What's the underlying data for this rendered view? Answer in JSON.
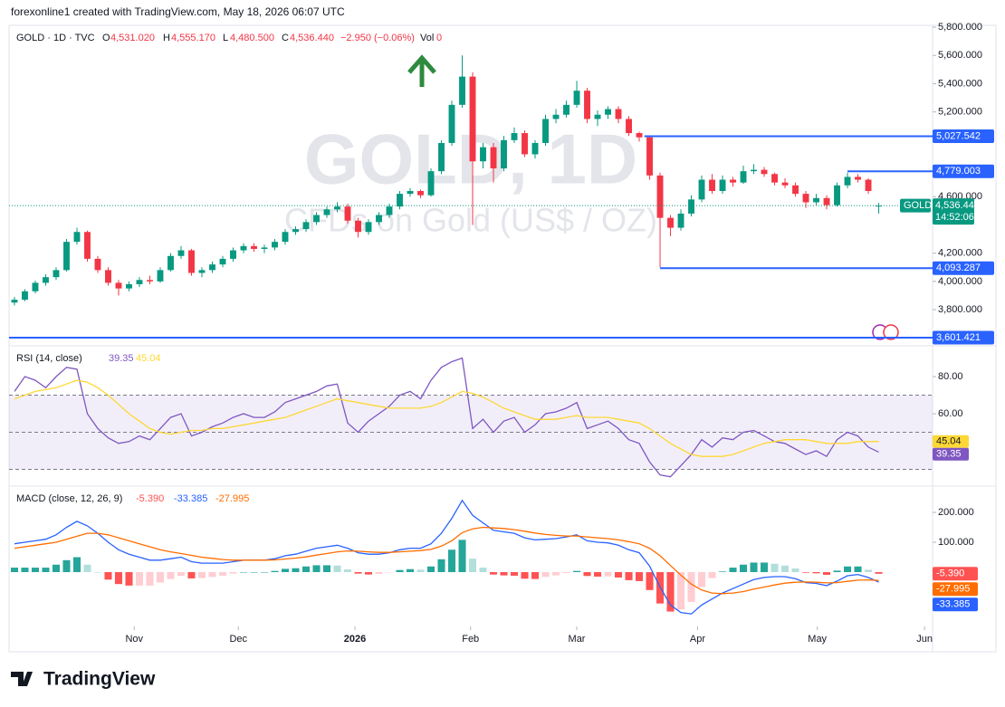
{
  "header": "forexonline1 created with TradingView.com, May 18, 2026 06:07 UTC",
  "legend": {
    "symbol": "GOLD · 1D · TVC",
    "o_label": "O",
    "o": "4,531.020",
    "h_label": "H",
    "h": "4,555.170",
    "l_label": "L",
    "l": "4,480.500",
    "c_label": "C",
    "c": "4,536.440",
    "change": "−2.950 (−0.06%)",
    "vol": "Vol",
    "vol_value": "0"
  },
  "watermark": [
    "GOLD, 1D",
    "CFDs on Gold (US$ / OZ)"
  ],
  "logo": "TradingView",
  "chart_data": [
    {
      "type": "candlestick",
      "up_color": "#089981",
      "down_color": "#f23645",
      "xlim": [
        -0.52,
        88.17
      ],
      "ylim": [
        3544,
        5800
      ],
      "yticks": [
        {
          "value": 5800,
          "label": "5,800.000"
        },
        {
          "value": 5600,
          "label": "5,600.000"
        },
        {
          "value": 5400,
          "label": "5,400.000"
        },
        {
          "value": 5200,
          "label": "5,200.000"
        },
        {
          "value": 4600,
          "label": "4,600.000"
        },
        {
          "value": 4200,
          "label": "4,200.000"
        },
        {
          "value": 4000,
          "label": "4,000.000"
        },
        {
          "value": 3800,
          "label": "3,800.000"
        }
      ],
      "candles": [
        [
          3850,
          3890,
          3830,
          3870
        ],
        [
          3870,
          3945,
          3860,
          3930
        ],
        [
          3930,
          4005,
          3915,
          3990
        ],
        [
          3990,
          4050,
          3970,
          4030
        ],
        [
          4030,
          4100,
          4010,
          4080
        ],
        [
          4080,
          4300,
          4070,
          4280
        ],
        [
          4280,
          4380,
          4260,
          4350
        ],
        [
          4350,
          4360,
          4140,
          4160
        ],
        [
          4160,
          4180,
          4060,
          4080
        ],
        [
          4080,
          4100,
          3970,
          3990
        ],
        [
          3990,
          4010,
          3900,
          3950
        ],
        [
          3950,
          4000,
          3930,
          3980
        ],
        [
          3980,
          4030,
          3960,
          4010
        ],
        [
          4010,
          4040,
          3980,
          4000
        ],
        [
          4000,
          4100,
          3990,
          4080
        ],
        [
          4080,
          4200,
          4070,
          4180
        ],
        [
          4180,
          4250,
          4160,
          4220
        ],
        [
          4220,
          4230,
          4040,
          4060
        ],
        [
          4060,
          4100,
          4030,
          4080
        ],
        [
          4080,
          4140,
          4060,
          4120
        ],
        [
          4120,
          4180,
          4100,
          4160
        ],
        [
          4160,
          4240,
          4140,
          4220
        ],
        [
          4220,
          4270,
          4200,
          4250
        ],
        [
          4250,
          4270,
          4210,
          4230
        ],
        [
          4230,
          4260,
          4200,
          4240
        ],
        [
          4240,
          4300,
          4220,
          4280
        ],
        [
          4280,
          4370,
          4260,
          4350
        ],
        [
          4350,
          4390,
          4330,
          4370
        ],
        [
          4370,
          4440,
          4350,
          4420
        ],
        [
          4420,
          4490,
          4400,
          4470
        ],
        [
          4470,
          4530,
          4450,
          4510
        ],
        [
          4510,
          4560,
          4490,
          4530
        ],
        [
          4530,
          4550,
          4410,
          4430
        ],
        [
          4430,
          4450,
          4310,
          4350
        ],
        [
          4350,
          4440,
          4330,
          4420
        ],
        [
          4420,
          4490,
          4400,
          4470
        ],
        [
          4470,
          4550,
          4450,
          4530
        ],
        [
          4530,
          4640,
          4510,
          4620
        ],
        [
          4620,
          4660,
          4600,
          4640
        ],
        [
          4640,
          4650,
          4590,
          4610
        ],
        [
          4610,
          4800,
          4600,
          4780
        ],
        [
          4780,
          5000,
          4760,
          4980
        ],
        [
          4980,
          5280,
          4960,
          5250
        ],
        [
          5250,
          5600,
          5230,
          5450
        ],
        [
          5450,
          5480,
          4400,
          4850
        ],
        [
          4850,
          4980,
          4800,
          4950
        ],
        [
          4950,
          4980,
          4700,
          4800
        ],
        [
          4800,
          5030,
          4780,
          5000
        ],
        [
          5000,
          5090,
          4980,
          5050
        ],
        [
          5050,
          5070,
          4880,
          4900
        ],
        [
          4900,
          5000,
          4870,
          4980
        ],
        [
          4980,
          5180,
          4960,
          5150
        ],
        [
          5150,
          5220,
          5120,
          5180
        ],
        [
          5180,
          5280,
          5160,
          5250
        ],
        [
          5250,
          5420,
          5230,
          5350
        ],
        [
          5350,
          5370,
          5120,
          5150
        ],
        [
          5150,
          5210,
          5100,
          5180
        ],
        [
          5180,
          5240,
          5150,
          5220
        ],
        [
          5220,
          5240,
          5120,
          5150
        ],
        [
          5150,
          5170,
          5030,
          5050
        ],
        [
          5050,
          5060,
          4990,
          5020
        ],
        [
          5020,
          5030,
          4720,
          4750
        ],
        [
          4750,
          4770,
          4100,
          4450
        ],
        [
          4450,
          4470,
          4320,
          4380
        ],
        [
          4380,
          4510,
          4360,
          4480
        ],
        [
          4480,
          4610,
          4460,
          4580
        ],
        [
          4580,
          4750,
          4560,
          4720
        ],
        [
          4720,
          4760,
          4620,
          4640
        ],
        [
          4640,
          4750,
          4620,
          4720
        ],
        [
          4720,
          4740,
          4670,
          4700
        ],
        [
          4700,
          4820,
          4690,
          4780
        ],
        [
          4780,
          4830,
          4760,
          4790
        ],
        [
          4790,
          4810,
          4740,
          4760
        ],
        [
          4760,
          4770,
          4680,
          4700
        ],
        [
          4700,
          4730,
          4660,
          4680
        ],
        [
          4680,
          4700,
          4600,
          4620
        ],
        [
          4620,
          4640,
          4520,
          4560
        ],
        [
          4560,
          4620,
          4540,
          4590
        ],
        [
          4590,
          4610,
          4510,
          4540
        ],
        [
          4540,
          4700,
          4530,
          4680
        ],
        [
          4680,
          4770,
          4660,
          4740
        ],
        [
          4740,
          4760,
          4700,
          4720
        ],
        [
          4720,
          4730,
          4620,
          4640
        ],
        [
          4531.02,
          4555.17,
          4480.5,
          4536.44
        ]
      ],
      "lines": [
        {
          "value": 5027.542,
          "label": "5,027.542",
          "start": 60.5,
          "color": "#2962ff"
        },
        {
          "value": 4779.003,
          "label": "4,779.003",
          "start": 80,
          "color": "#2962ff"
        },
        {
          "value": 4093.287,
          "label": "4,093.287",
          "start": 62,
          "color": "#2962ff"
        },
        {
          "value": 3601.421,
          "label": "3,601.421",
          "start": -0.52,
          "color": "#2962ff"
        }
      ],
      "last": {
        "symbol": "GOLD",
        "label": "4,536.440",
        "countdown": "14:52:06",
        "value": 4536.44,
        "color": "#089981"
      }
    },
    {
      "type": "line",
      "title": "RSI (14, close)",
      "xlim": [
        -0.52,
        88.17
      ],
      "ylim": [
        21,
        96.6
      ],
      "yticks": [
        {
          "value": 80,
          "label": "80.00"
        },
        {
          "value": 60,
          "label": "60.00"
        }
      ],
      "bands": [
        70,
        50,
        30
      ],
      "band_color": "#7e57c2",
      "series": [
        {
          "color": "#7e57c2",
          "value_label": "39.35",
          "values": [
            72,
            80,
            78,
            74,
            80,
            85,
            84,
            60,
            52,
            47,
            44,
            45,
            48,
            46,
            52,
            58,
            60,
            48,
            50,
            53,
            55,
            58,
            60,
            58,
            58,
            61,
            66,
            68,
            70,
            72,
            75,
            76,
            55,
            50,
            56,
            60,
            64,
            70,
            72,
            68,
            78,
            85,
            88,
            90,
            52,
            57,
            50,
            56,
            58,
            50,
            54,
            60,
            61,
            63,
            66,
            52,
            54,
            56,
            52,
            46,
            44,
            34,
            27,
            26,
            32,
            38,
            46,
            42,
            47,
            46,
            50,
            51,
            48,
            45,
            44,
            41,
            38,
            40,
            37,
            46,
            50,
            48,
            42,
            39.35
          ]
        },
        {
          "color": "#fdd835",
          "value_label": "45.04",
          "values": [
            68,
            70,
            72,
            73,
            74,
            76,
            78,
            77,
            74,
            70,
            65,
            60,
            56,
            52,
            50,
            49,
            50,
            51,
            51,
            52,
            52,
            53,
            54,
            55,
            56,
            57,
            58,
            60,
            62,
            64,
            66,
            68,
            67,
            66,
            65,
            64,
            63,
            63,
            63,
            63,
            64,
            66,
            69,
            72,
            71,
            69,
            66,
            63,
            61,
            59,
            57,
            57,
            57,
            58,
            59,
            58,
            58,
            58,
            57,
            56,
            55,
            52,
            48,
            44,
            41,
            38,
            37,
            37,
            37,
            38,
            40,
            42,
            44,
            45,
            46,
            46,
            46,
            45,
            44,
            44,
            44,
            45,
            45,
            45.04
          ]
        }
      ]
    },
    {
      "type": "macd",
      "title": "MACD (close, 12, 26, 9)",
      "xlim": [
        -0.52,
        88.17
      ],
      "ylim": [
        -181.8,
        287.9
      ],
      "yticks": [
        {
          "value": 200,
          "label": "200.000"
        },
        {
          "value": 100,
          "label": "100.000"
        }
      ],
      "xticks": [
        {
          "value": 11.5,
          "label": "Nov"
        },
        {
          "value": 21.5,
          "label": "Dec"
        },
        {
          "value": 32.7,
          "label": "2026"
        },
        {
          "value": 43.8,
          "label": "Feb"
        },
        {
          "value": 54,
          "label": "Mar"
        },
        {
          "value": 65.6,
          "label": "Apr"
        },
        {
          "value": 77.1,
          "label": "May"
        },
        {
          "value": 87.4,
          "label": "Jun"
        }
      ],
      "histogram": {
        "colors": [
          "#26a69a",
          "#b2dfdb",
          "#ffcdd2",
          "#ff5252"
        ],
        "value_label": "-5.390",
        "label_color": "#ff5252",
        "values": [
          15,
          15,
          15,
          15,
          25,
          40,
          50,
          25,
          0,
          -25,
          -40,
          -45,
          -45,
          -45,
          -35,
          -23,
          -12,
          -21,
          -20,
          -16,
          -12,
          -5,
          0,
          0,
          0,
          4,
          11,
          13,
          19,
          23,
          23,
          22,
          9,
          -5,
          -8,
          -6,
          -1,
          7,
          10,
          8,
          19,
          43,
          75,
          108,
          45,
          15,
          -8,
          -11,
          -12,
          -22,
          -23,
          -16,
          -11,
          -3,
          4,
          -13,
          -15,
          -14,
          -18,
          -27,
          -30,
          -60,
          -105,
          -132,
          -125,
          -100,
          -50,
          -20,
          2,
          15,
          25,
          32,
          32,
          28,
          22,
          12,
          -2,
          -4,
          -9,
          5,
          19,
          19,
          8,
          -5.39
        ]
      },
      "series": [
        {
          "color": "#2962ff",
          "value_label": "-33.385",
          "values": [
            95,
            100,
            105,
            110,
            125,
            150,
            170,
            155,
            130,
            100,
            75,
            60,
            50,
            40,
            40,
            45,
            50,
            35,
            30,
            30,
            30,
            35,
            40,
            40,
            40,
            45,
            55,
            60,
            70,
            80,
            85,
            90,
            80,
            65,
            60,
            60,
            65,
            75,
            80,
            80,
            95,
            130,
            180,
            240,
            190,
            165,
            140,
            135,
            130,
            115,
            108,
            110,
            112,
            118,
            125,
            105,
            100,
            98,
            90,
            75,
            65,
            20,
            -50,
            -110,
            -135,
            -140,
            -110,
            -90,
            -70,
            -55,
            -40,
            -25,
            -18,
            -15,
            -15,
            -22,
            -35,
            -38,
            -45,
            -30,
            -12,
            -8,
            -18,
            -33.385
          ]
        },
        {
          "color": "#ff6d00",
          "value_label": "-27.995",
          "values": [
            80,
            85,
            90,
            95,
            100,
            110,
            120,
            130,
            130,
            125,
            115,
            105,
            95,
            85,
            75,
            68,
            62,
            56,
            50,
            46,
            42,
            40,
            40,
            40,
            40,
            41,
            44,
            47,
            51,
            57,
            62,
            68,
            71,
            70,
            68,
            66,
            66,
            68,
            70,
            72,
            76,
            87,
            105,
            132,
            145,
            150,
            148,
            146,
            142,
            137,
            131,
            126,
            123,
            121,
            121,
            118,
            115,
            112,
            108,
            102,
            95,
            80,
            55,
            22,
            -10,
            -40,
            -60,
            -70,
            -72,
            -70,
            -65,
            -57,
            -50,
            -43,
            -37,
            -34,
            -33,
            -34,
            -36,
            -35,
            -31,
            -27,
            -26,
            -27.995
          ]
        }
      ]
    }
  ]
}
